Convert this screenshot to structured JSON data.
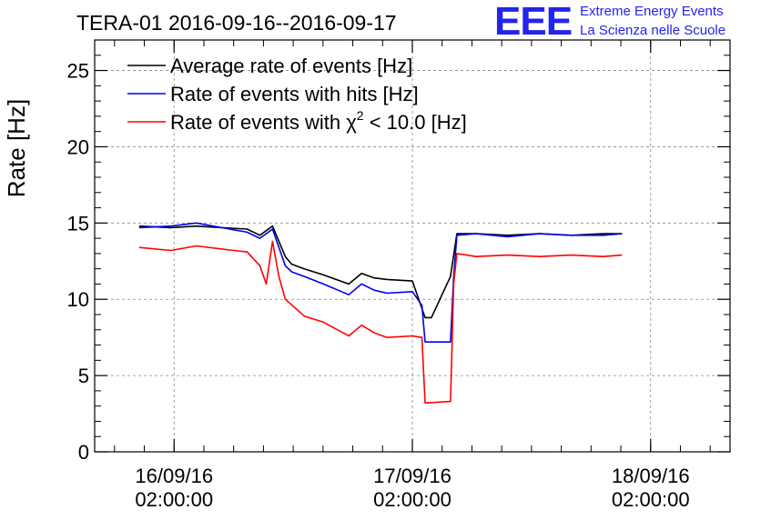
{
  "chart_data": {
    "type": "line",
    "title": "TERA-01 2016-09-16--2016-09-17",
    "ylabel": "Rate [Hz]",
    "xlabel": "",
    "ylim": [
      0,
      27
    ],
    "xlim": [
      0,
      1
    ],
    "grid": true,
    "legend_position": "top-left",
    "y_ticks": [
      0,
      5,
      10,
      15,
      20,
      25
    ],
    "x_ticks": [
      {
        "x": 0.125,
        "label_date": "16/09/16",
        "label_time": "02:00:00"
      },
      {
        "x": 0.5,
        "label_date": "17/09/16",
        "label_time": "02:00:00"
      },
      {
        "x": 0.875,
        "label_date": "18/09/16",
        "label_time": "02:00:00"
      }
    ],
    "legend": {
      "avg": "Average rate of events [Hz]",
      "hits": "Rate of events with hits [Hz]",
      "chi2_prefix": "Rate of events with ",
      "chi2_symbol": "χ",
      "chi2_sup": "2",
      "chi2_suffix": " < 10.0 [Hz]"
    },
    "series": [
      {
        "name": "Average rate of events [Hz]",
        "color": "#000000",
        "x": [
          0.07,
          0.12,
          0.16,
          0.2,
          0.24,
          0.26,
          0.28,
          0.3,
          0.31,
          0.33,
          0.36,
          0.4,
          0.42,
          0.44,
          0.46,
          0.5,
          0.52,
          0.53,
          0.56,
          0.57,
          0.6,
          0.65,
          0.7,
          0.75,
          0.8,
          0.83
        ],
        "values": [
          14.8,
          14.7,
          14.8,
          14.7,
          14.6,
          14.2,
          14.8,
          12.8,
          12.3,
          12.0,
          11.6,
          11.0,
          11.7,
          11.4,
          11.3,
          11.2,
          8.8,
          8.8,
          11.5,
          14.3,
          14.3,
          14.2,
          14.3,
          14.2,
          14.3,
          14.3
        ]
      },
      {
        "name": "Rate of events with hits [Hz]",
        "color": "#0000ee",
        "x": [
          0.07,
          0.12,
          0.16,
          0.2,
          0.24,
          0.26,
          0.28,
          0.3,
          0.31,
          0.33,
          0.36,
          0.4,
          0.42,
          0.44,
          0.46,
          0.5,
          0.515,
          0.52,
          0.56,
          0.565,
          0.57,
          0.6,
          0.65,
          0.7,
          0.75,
          0.8,
          0.83
        ],
        "values": [
          14.7,
          14.8,
          15.0,
          14.7,
          14.4,
          14.0,
          14.6,
          12.2,
          11.8,
          11.5,
          11.0,
          10.3,
          11.0,
          10.6,
          10.4,
          10.5,
          9.6,
          7.2,
          7.2,
          11.5,
          14.2,
          14.3,
          14.1,
          14.3,
          14.2,
          14.2,
          14.3
        ]
      },
      {
        "name": "Rate of events with χ2 < 10.0 [Hz]",
        "color": "#ff0000",
        "x": [
          0.07,
          0.12,
          0.16,
          0.2,
          0.24,
          0.26,
          0.27,
          0.28,
          0.29,
          0.3,
          0.33,
          0.36,
          0.4,
          0.42,
          0.44,
          0.46,
          0.5,
          0.515,
          0.52,
          0.56,
          0.565,
          0.57,
          0.6,
          0.65,
          0.7,
          0.75,
          0.8,
          0.83
        ],
        "values": [
          13.4,
          13.2,
          13.5,
          13.3,
          13.1,
          12.2,
          11.0,
          13.8,
          11.5,
          10.0,
          8.9,
          8.5,
          7.6,
          8.3,
          7.8,
          7.5,
          7.6,
          7.5,
          3.2,
          3.3,
          11.0,
          13.0,
          12.8,
          12.9,
          12.8,
          12.9,
          12.8,
          12.9
        ]
      }
    ]
  },
  "logo": {
    "text": "EEE",
    "line1": "Extreme Energy Events",
    "line2": "La Scienza nelle Scuole"
  }
}
